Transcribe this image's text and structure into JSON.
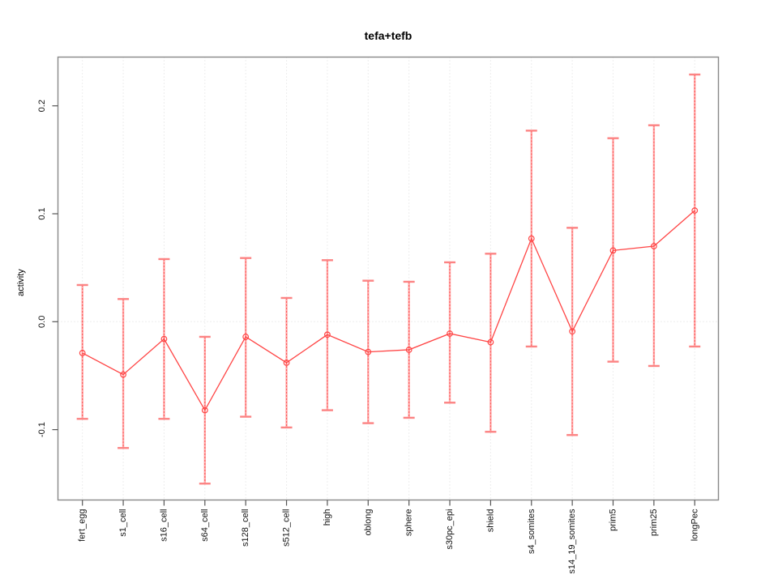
{
  "chart_data": {
    "type": "line",
    "title": "tefa+tefb",
    "xlabel": "",
    "ylabel": "activity",
    "categories": [
      "fert_egg",
      "s1_cell",
      "s16_cell",
      "s64_cell",
      "s128_cell",
      "s512_cell",
      "high",
      "oblong",
      "sphere",
      "s30pc_epi",
      "shield",
      "s4_somites",
      "s14_19_somites",
      "prim5",
      "prim25",
      "longPec"
    ],
    "series": [
      {
        "name": "tefa+tefb",
        "values": [
          -0.029,
          -0.049,
          -0.016,
          -0.082,
          -0.014,
          -0.038,
          -0.012,
          -0.028,
          -0.026,
          -0.011,
          -0.019,
          0.077,
          -0.009,
          0.066,
          0.07,
          0.103
        ],
        "error_upper": [
          0.034,
          0.021,
          0.058,
          -0.014,
          0.059,
          0.022,
          0.057,
          0.038,
          0.037,
          0.055,
          0.063,
          0.177,
          0.087,
          0.17,
          0.182,
          0.229
        ],
        "error_lower": [
          -0.09,
          -0.117,
          -0.09,
          -0.15,
          -0.088,
          -0.098,
          -0.082,
          -0.094,
          -0.089,
          -0.075,
          -0.102,
          -0.023,
          -0.105,
          -0.037,
          -0.041,
          -0.023
        ]
      }
    ],
    "yticks": [
      0.2,
      0.1,
      0.0,
      -0.1
    ],
    "ytick_labels": [
      "0.2",
      "0.1",
      "0.0",
      "-0.1"
    ],
    "ylim": [
      -0.162,
      0.246
    ],
    "grid": {
      "vertical": "dotted line at every category",
      "horizontal": "dotted line at y=0 only"
    },
    "legend": "none",
    "marker": "open-circle",
    "colors": {
      "line": "#ff4545",
      "marker": "#ff4545",
      "error_bar_underlay": "#ffaaaa",
      "error_bar_dash": "#ff5a5a",
      "error_cap": "#fc8383",
      "grid": "#dcdcdc",
      "box": "#888888",
      "tick": "#555555",
      "text": "#111111"
    }
  }
}
